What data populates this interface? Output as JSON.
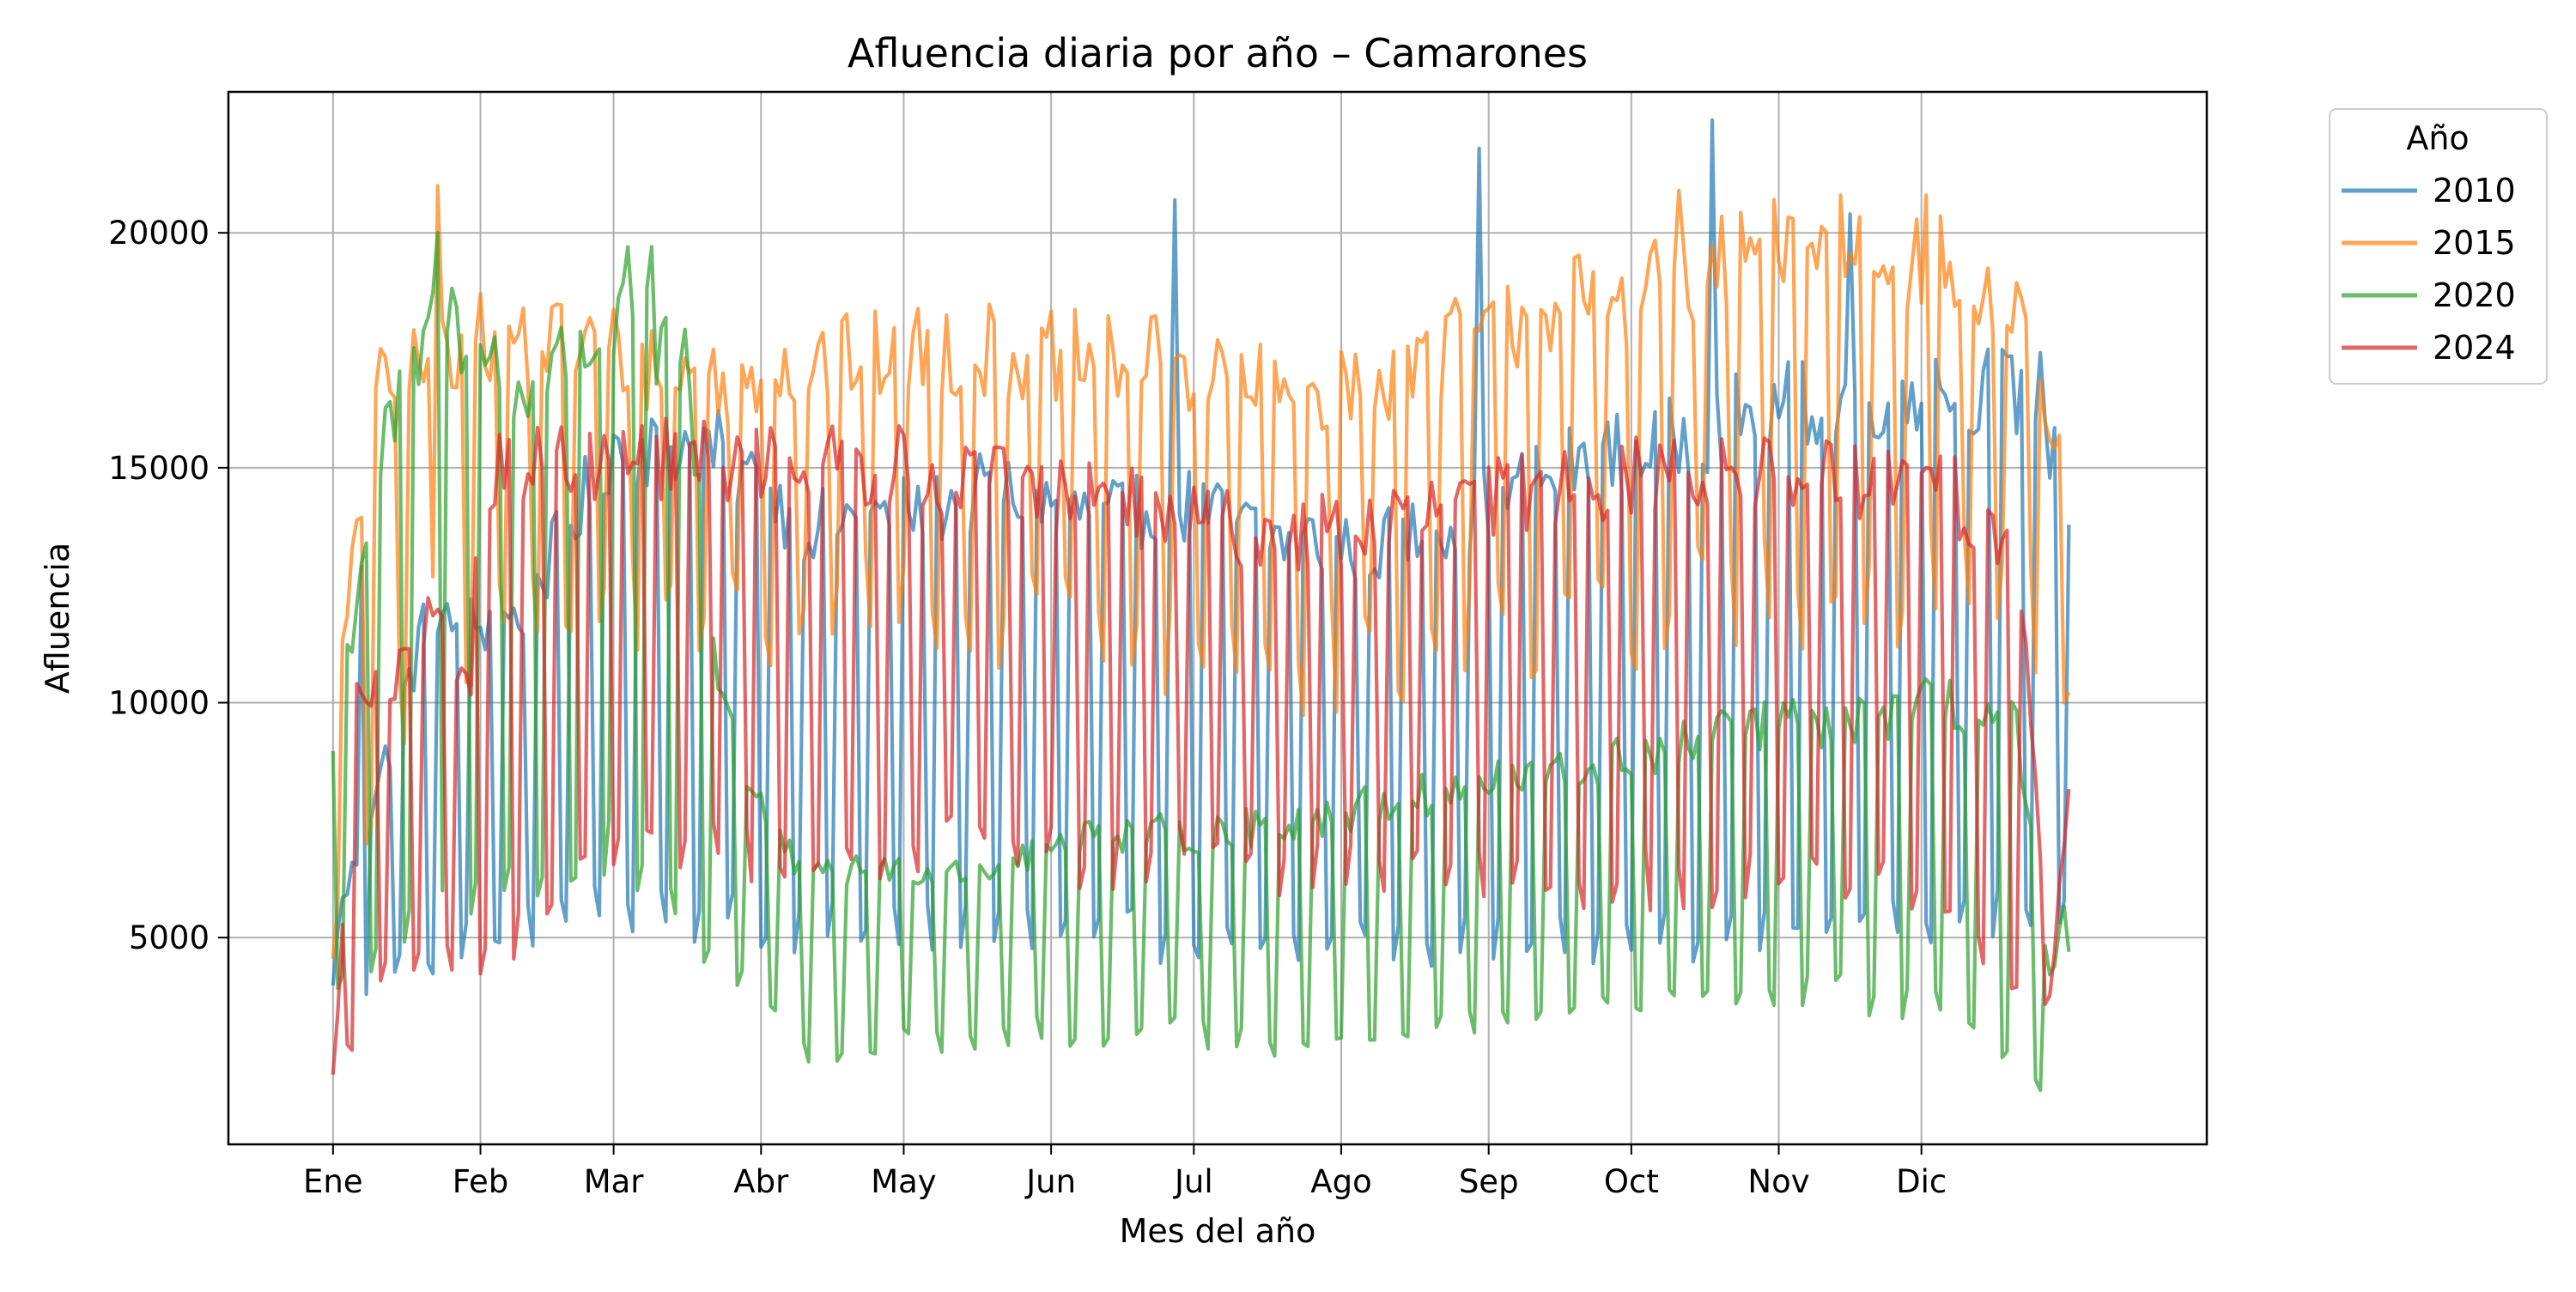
{
  "chart_data": {
    "type": "line",
    "title": "Afluencia diaria por año – Camarones",
    "xlabel": "Mes del año",
    "ylabel": "Afluencia",
    "x_domain_days": [
      -21,
      395
    ],
    "ylim": [
      600,
      23000
    ],
    "grid": true,
    "x_ticks": [
      {
        "day": 1,
        "label": "Ene"
      },
      {
        "day": 32,
        "label": "Feb"
      },
      {
        "day": 60,
        "label": "Mar"
      },
      {
        "day": 91,
        "label": "Abr"
      },
      {
        "day": 121,
        "label": "May"
      },
      {
        "day": 152,
        "label": "Jun"
      },
      {
        "day": 182,
        "label": "Jul"
      },
      {
        "day": 213,
        "label": "Ago"
      },
      {
        "day": 244,
        "label": "Sep"
      },
      {
        "day": 274,
        "label": "Oct"
      },
      {
        "day": 305,
        "label": "Nov"
      },
      {
        "day": 335,
        "label": "Dic"
      }
    ],
    "y_ticks": [
      5000,
      10000,
      15000,
      20000
    ],
    "legend": {
      "title": "Año",
      "position": "outside-top-right"
    },
    "series": [
      {
        "name": "2010",
        "color": "#1f77b4",
        "weekday": [
          [
            1,
            5000
          ],
          [
            20,
            11500
          ],
          [
            40,
            11800
          ],
          [
            60,
            15500
          ],
          [
            80,
            15500
          ],
          [
            100,
            13800
          ],
          [
            120,
            14000
          ],
          [
            140,
            14500
          ],
          [
            160,
            14000
          ],
          [
            180,
            14200
          ],
          [
            200,
            13500
          ],
          [
            220,
            13300
          ],
          [
            240,
            14000
          ],
          [
            260,
            15000
          ],
          [
            280,
            15500
          ],
          [
            300,
            16200
          ],
          [
            320,
            16500
          ],
          [
            340,
            16800
          ],
          [
            360,
            16500
          ],
          [
            370,
            12000
          ]
        ],
        "weekend": [
          [
            1,
            3800
          ],
          [
            30,
            5000
          ],
          [
            60,
            5600
          ],
          [
            100,
            5200
          ],
          [
            150,
            5200
          ],
          [
            200,
            4800
          ],
          [
            250,
            5000
          ],
          [
            300,
            5000
          ],
          [
            350,
            5500
          ],
          [
            370,
            6000
          ]
        ],
        "spikes": [
          [
            178,
            20700
          ],
          [
            242,
            21800
          ],
          [
            291,
            22400
          ],
          [
            320,
            20400
          ],
          [
            7,
            12900
          ]
        ]
      },
      {
        "name": "2015",
        "color": "#ff7f0e",
        "weekday": [
          [
            1,
            9500
          ],
          [
            10,
            16500
          ],
          [
            24,
            17500
          ],
          [
            40,
            17800
          ],
          [
            60,
            17500
          ],
          [
            80,
            16800
          ],
          [
            100,
            17200
          ],
          [
            120,
            17500
          ],
          [
            140,
            17500
          ],
          [
            160,
            17300
          ],
          [
            180,
            17200
          ],
          [
            200,
            16500
          ],
          [
            220,
            16800
          ],
          [
            240,
            17800
          ],
          [
            260,
            18500
          ],
          [
            280,
            18800
          ],
          [
            300,
            19500
          ],
          [
            320,
            19800
          ],
          [
            340,
            19300
          ],
          [
            355,
            18000
          ],
          [
            368,
            13500
          ]
        ],
        "weekend": [
          [
            1,
            5000
          ],
          [
            20,
            11500
          ],
          [
            60,
            12000
          ],
          [
            100,
            12000
          ],
          [
            150,
            11500
          ],
          [
            200,
            10800
          ],
          [
            250,
            11500
          ],
          [
            300,
            12200
          ],
          [
            350,
            12500
          ],
          [
            370,
            10500
          ]
        ],
        "spikes": [
          [
            23,
            21000
          ],
          [
            284,
            20900
          ],
          [
            318,
            20800
          ],
          [
            336,
            20800
          ]
        ]
      },
      {
        "name": "2020",
        "color": "#2ca02c",
        "weekday": [
          [
            1,
            9000
          ],
          [
            10,
            15000
          ],
          [
            24,
            18500
          ],
          [
            40,
            16500
          ],
          [
            60,
            18000
          ],
          [
            75,
            17500
          ],
          [
            82,
            10500
          ],
          [
            90,
            8000
          ],
          [
            100,
            6200
          ],
          [
            120,
            6500
          ],
          [
            140,
            6500
          ],
          [
            160,
            7200
          ],
          [
            180,
            7200
          ],
          [
            200,
            7400
          ],
          [
            220,
            7800
          ],
          [
            240,
            8200
          ],
          [
            260,
            8500
          ],
          [
            280,
            9000
          ],
          [
            300,
            9500
          ],
          [
            320,
            9600
          ],
          [
            340,
            10000
          ],
          [
            355,
            9500
          ],
          [
            362,
            4000
          ],
          [
            370,
            8000
          ]
        ],
        "weekend": [
          [
            1,
            3900
          ],
          [
            30,
            6000
          ],
          [
            60,
            6800
          ],
          [
            82,
            4500
          ],
          [
            90,
            4000
          ],
          [
            100,
            2500
          ],
          [
            120,
            2800
          ],
          [
            150,
            3000
          ],
          [
            180,
            3000
          ],
          [
            200,
            2700
          ],
          [
            220,
            3000
          ],
          [
            240,
            3200
          ],
          [
            260,
            3400
          ],
          [
            280,
            3500
          ],
          [
            300,
            3800
          ],
          [
            320,
            3800
          ],
          [
            340,
            3500
          ],
          [
            360,
            1700
          ],
          [
            370,
            6000
          ]
        ],
        "spikes": [
          [
            23,
            20000
          ],
          [
            63,
            19700
          ],
          [
            68,
            19700
          ]
        ]
      },
      {
        "name": "2024",
        "color": "#d62728",
        "weekday": [
          [
            1,
            2000
          ],
          [
            6,
            10000
          ],
          [
            15,
            10500
          ],
          [
            20,
            11800
          ],
          [
            30,
            10500
          ],
          [
            32,
            15000
          ],
          [
            60,
            15200
          ],
          [
            80,
            15200
          ],
          [
            100,
            15000
          ],
          [
            120,
            15000
          ],
          [
            140,
            14800
          ],
          [
            150,
            14500
          ],
          [
            160,
            14300
          ],
          [
            180,
            14000
          ],
          [
            200,
            13500
          ],
          [
            220,
            13800
          ],
          [
            240,
            14200
          ],
          [
            260,
            14700
          ],
          [
            280,
            14800
          ],
          [
            300,
            14900
          ],
          [
            320,
            14800
          ],
          [
            340,
            14500
          ],
          [
            355,
            13500
          ],
          [
            362,
            4000
          ],
          [
            368,
            10000
          ]
        ],
        "weekend": [
          [
            1,
            1800
          ],
          [
            10,
            4000
          ],
          [
            30,
            4500
          ],
          [
            60,
            6500
          ],
          [
            100,
            7000
          ],
          [
            150,
            6800
          ],
          [
            200,
            6500
          ],
          [
            250,
            6300
          ],
          [
            300,
            6200
          ],
          [
            340,
            6000
          ],
          [
            360,
            3100
          ],
          [
            370,
            7000
          ]
        ],
        "spikes": []
      }
    ]
  }
}
